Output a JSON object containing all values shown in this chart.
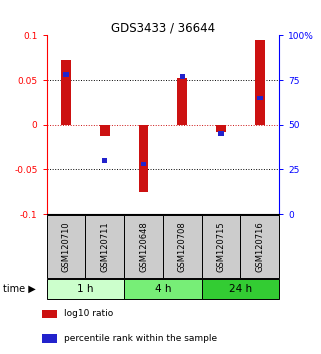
{
  "title": "GDS3433 / 36644",
  "samples": [
    "GSM120710",
    "GSM120711",
    "GSM120648",
    "GSM120708",
    "GSM120715",
    "GSM120716"
  ],
  "log10_ratio": [
    0.072,
    -0.013,
    -0.075,
    0.052,
    -0.008,
    0.095
  ],
  "percentile_rank": [
    78,
    30,
    28,
    77,
    45,
    65
  ],
  "ylim_left": [
    -0.1,
    0.1
  ],
  "ylim_right": [
    0,
    100
  ],
  "yticks_left": [
    -0.1,
    -0.05,
    0,
    0.05,
    0.1
  ],
  "yticks_right": [
    0,
    25,
    50,
    75,
    100
  ],
  "ytick_labels_left": [
    "-0.1",
    "-0.05",
    "0",
    "0.05",
    "0.1"
  ],
  "ytick_labels_right": [
    "0",
    "25",
    "50",
    "75",
    "100%"
  ],
  "bar_color": "#cc1111",
  "dot_color": "#2222cc",
  "time_groups": [
    {
      "label": "1 h",
      "start": 0,
      "end": 2,
      "color": "#ccffcc"
    },
    {
      "label": "4 h",
      "start": 2,
      "end": 4,
      "color": "#77ee77"
    },
    {
      "label": "24 h",
      "start": 4,
      "end": 6,
      "color": "#33cc33"
    }
  ],
  "legend_items": [
    {
      "label": "log10 ratio",
      "color": "#cc1111"
    },
    {
      "label": "percentile rank within the sample",
      "color": "#2222cc"
    }
  ],
  "hline_zero_color": "#cc1111",
  "sample_box_color": "#cccccc",
  "time_arrow_label": "time",
  "bar_width": 0.25
}
